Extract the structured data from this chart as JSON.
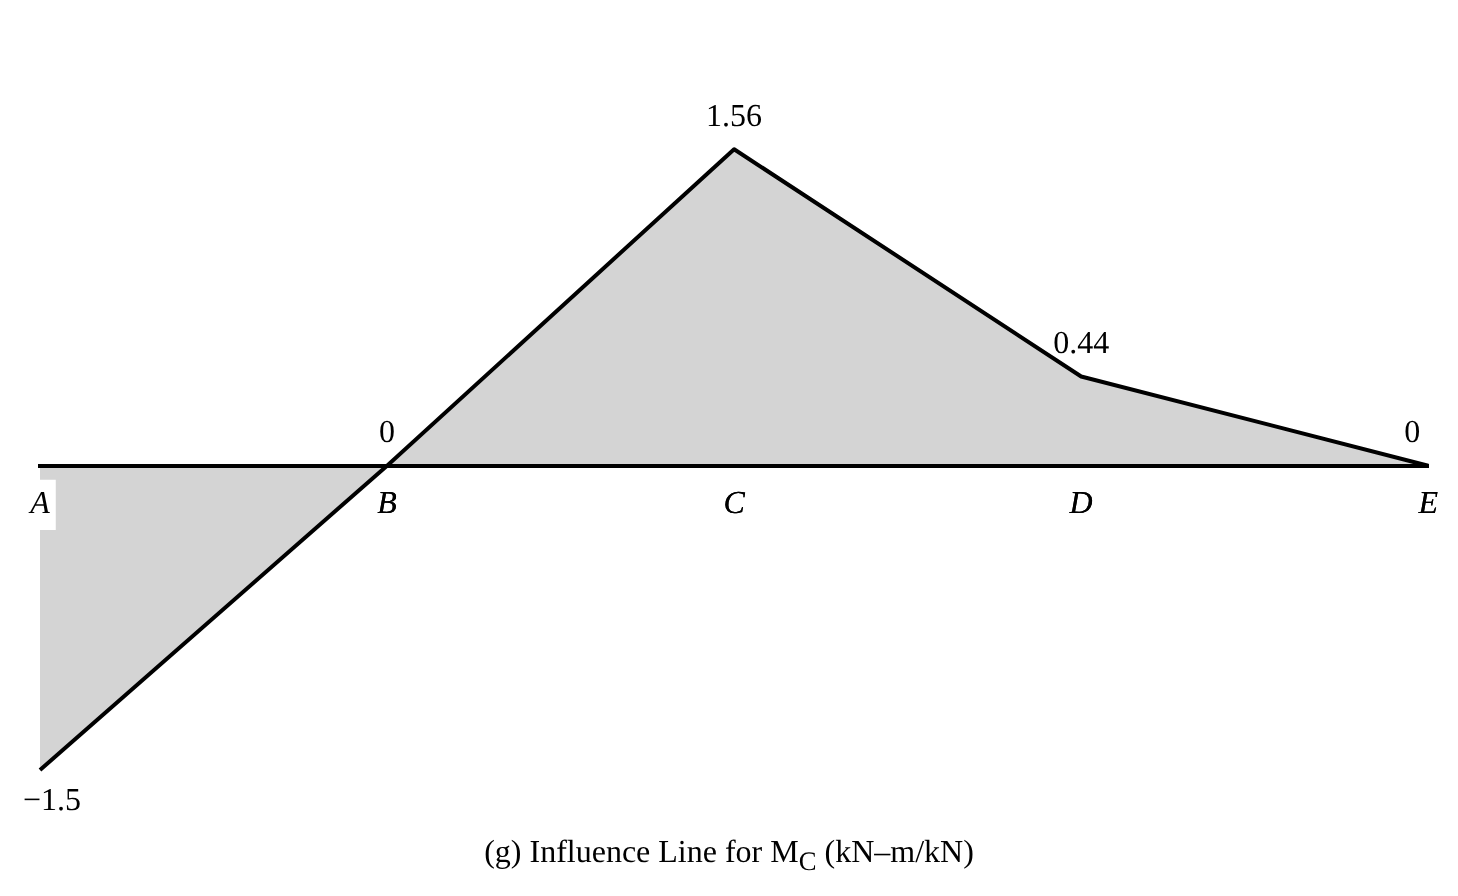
{
  "chart_data": {
    "type": "area",
    "categories": [
      "A",
      "B",
      "C",
      "D",
      "E"
    ],
    "series": [
      {
        "color": "#000000",
        "values": [
          -1.5,
          0,
          1.56,
          0.44,
          0
        ]
      }
    ],
    "data_labels": true,
    "annotations": [
      "(g)  Influence Line for M$_{C}$ (kN–m/kN)"
    ],
    "tick_labels": "x",
    "grid": false,
    "legend": false,
    "marker": "none",
    "line_style": "solid"
  }
}
